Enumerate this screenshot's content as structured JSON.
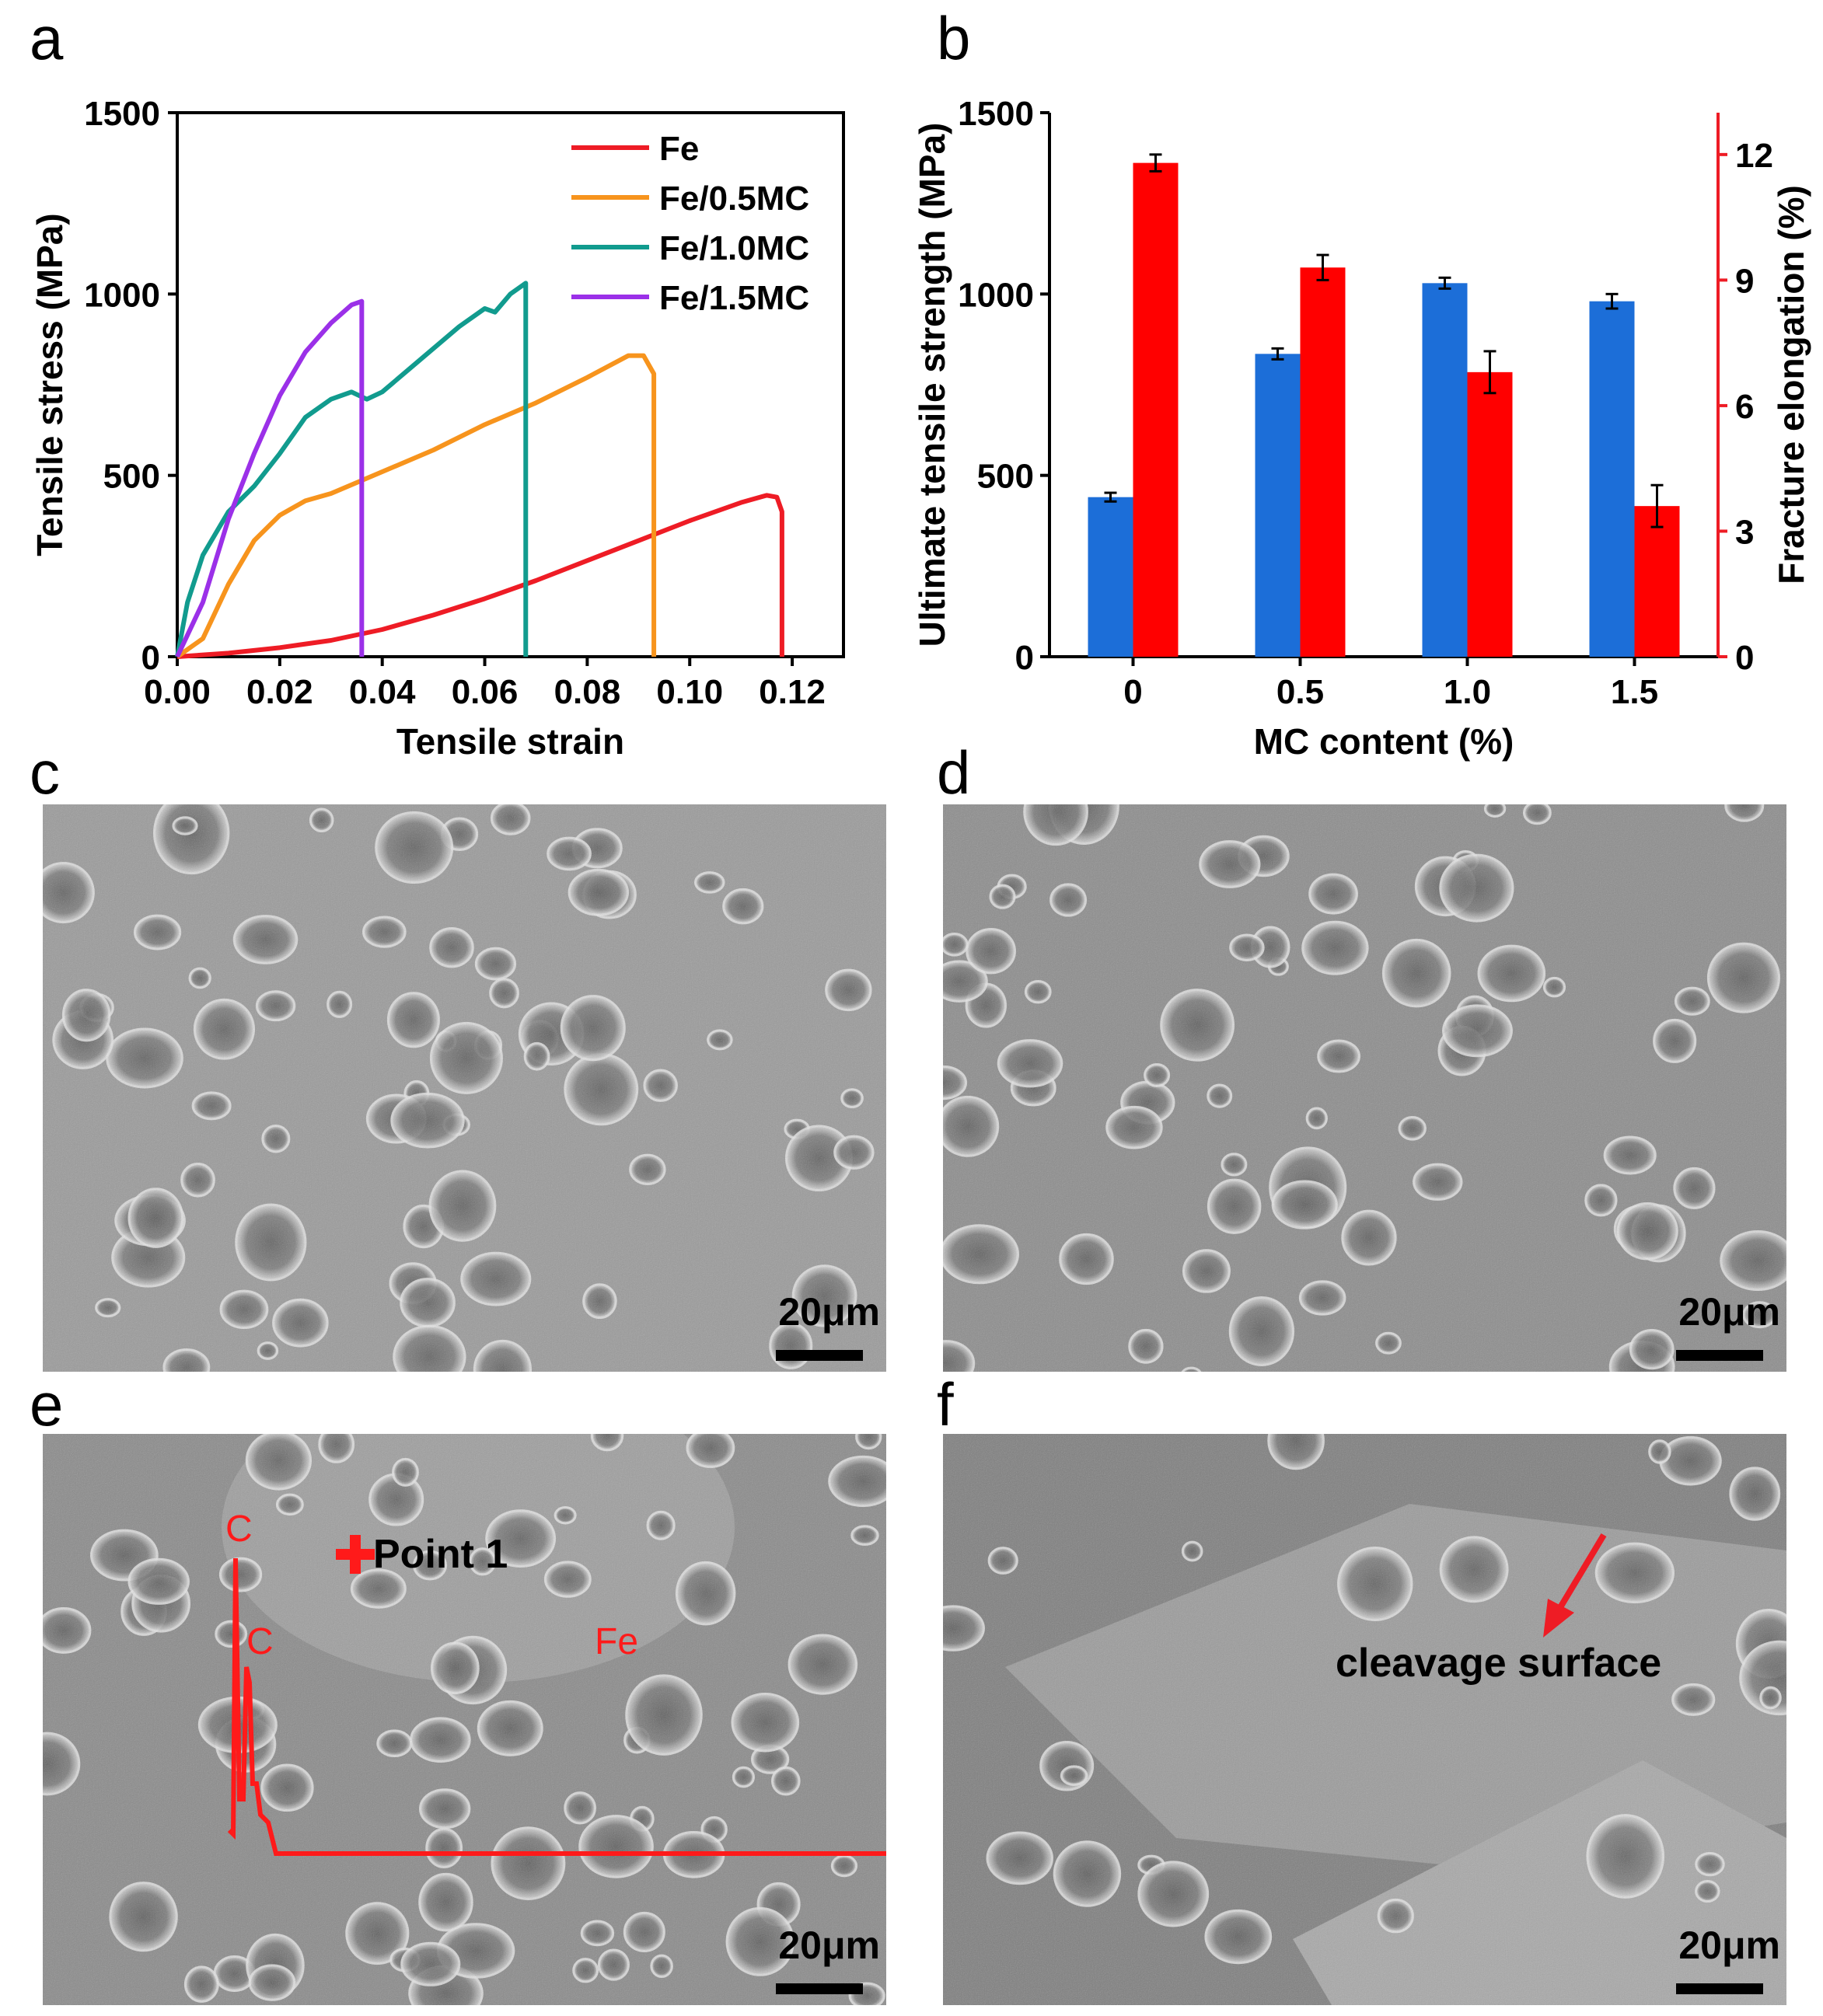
{
  "panels": {
    "a": "a",
    "b": "b",
    "c": "c",
    "d": "d",
    "e": "e",
    "f": "f"
  },
  "chart_data": [
    {
      "type": "line",
      "panel": "a",
      "xlabel": "Tensile strain",
      "ylabel": "Tensile stress (MPa)",
      "xlim": [
        0,
        0.13
      ],
      "ylim": [
        0,
        1500
      ],
      "xticks": [
        "0.00",
        "0.02",
        "0.04",
        "0.06",
        "0.08",
        "0.10",
        "0.12"
      ],
      "yticks": [
        "0",
        "500",
        "1000",
        "1500"
      ],
      "legend_position": "top-right",
      "series": [
        {
          "name": "Fe",
          "color": "#ee1c25",
          "x": [
            0,
            0.01,
            0.02,
            0.03,
            0.04,
            0.05,
            0.06,
            0.07,
            0.08,
            0.09,
            0.1,
            0.11,
            0.115,
            0.117,
            0.118,
            0.118
          ],
          "y": [
            0,
            10,
            25,
            45,
            75,
            115,
            160,
            210,
            265,
            320,
            375,
            425,
            445,
            440,
            400,
            0
          ]
        },
        {
          "name": "Fe/0.5MC",
          "color": "#f7941d",
          "x": [
            0,
            0.005,
            0.01,
            0.015,
            0.02,
            0.025,
            0.03,
            0.04,
            0.05,
            0.06,
            0.07,
            0.08,
            0.088,
            0.091,
            0.093,
            0.093
          ],
          "y": [
            0,
            50,
            200,
            320,
            390,
            430,
            450,
            510,
            570,
            640,
            700,
            770,
            830,
            830,
            780,
            0
          ]
        },
        {
          "name": "Fe/1.0MC",
          "color": "#119b8e",
          "x": [
            0,
            0.002,
            0.005,
            0.01,
            0.015,
            0.02,
            0.025,
            0.03,
            0.034,
            0.037,
            0.04,
            0.045,
            0.05,
            0.055,
            0.06,
            0.062,
            0.065,
            0.068,
            0.068
          ],
          "y": [
            0,
            150,
            280,
            400,
            470,
            560,
            660,
            710,
            730,
            710,
            730,
            790,
            850,
            910,
            960,
            950,
            1000,
            1030,
            0
          ]
        },
        {
          "name": "Fe/1.5MC",
          "color": "#9b30e8",
          "x": [
            0,
            0.005,
            0.01,
            0.015,
            0.02,
            0.025,
            0.03,
            0.034,
            0.036,
            0.036
          ],
          "y": [
            0,
            150,
            380,
            560,
            720,
            840,
            920,
            970,
            980,
            0
          ]
        }
      ]
    },
    {
      "type": "bar",
      "panel": "b",
      "xlabel": "MC content (%)",
      "ylabel": "Ultimate tensile strength (MPa)",
      "y2label": "Fracture elongation (%)",
      "categories": [
        "0",
        "0.5",
        "1.0",
        "1.5"
      ],
      "ylim": [
        0,
        1500
      ],
      "y2lim": [
        0,
        13
      ],
      "yticks": [
        "0",
        "500",
        "1000",
        "1500"
      ],
      "y2ticks": [
        "0",
        "3",
        "6",
        "9",
        "12"
      ],
      "series": [
        {
          "axis": "left",
          "color": "#1c6ed8",
          "values": [
            440,
            835,
            1030,
            980
          ],
          "errors": [
            12,
            15,
            15,
            20
          ]
        },
        {
          "axis": "right",
          "color": "#ff0000",
          "values": [
            11.8,
            9.3,
            6.8,
            3.6
          ],
          "errors": [
            0.2,
            0.3,
            0.5,
            0.5
          ]
        }
      ],
      "axis_colors": {
        "left": "#000000",
        "right": "#ee1c25"
      }
    }
  ],
  "sem": {
    "scale_label": "20μm",
    "e": {
      "point_label": "Point 1",
      "peak_labels": [
        "C",
        "C",
        "Fe"
      ],
      "spectrum_color": "#ff1a1a"
    },
    "f": {
      "annotation": "cleavage surface",
      "arrow_color": "#ee1c25"
    }
  }
}
